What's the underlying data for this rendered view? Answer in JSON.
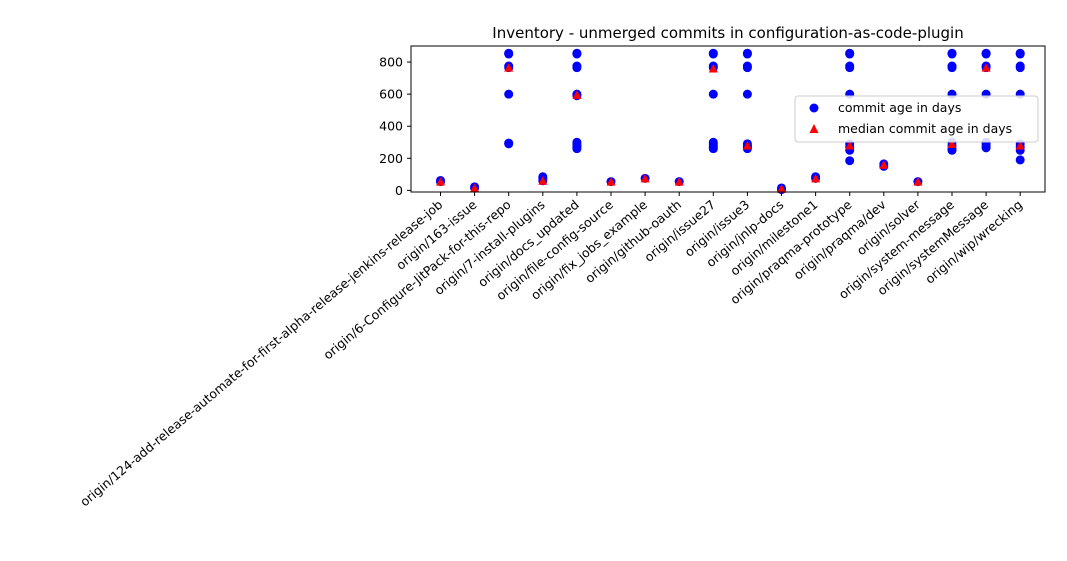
{
  "chart_data": {
    "type": "scatter",
    "title": "Inventory - unmerged commits in configuration-as-code-plugin",
    "xlabel": "",
    "ylabel": "",
    "ylim": [
      -10,
      900
    ],
    "yticks": [
      0,
      200,
      400,
      600,
      800
    ],
    "categories": [
      "origin/124-add-release-automate-for-first-alpha-release-jenkins-release-job",
      "origin/163-issue",
      "origin/6-Configure-JitPack-for-this-repo",
      "origin/7-install-plugins",
      "origin/docs_updated",
      "origin/file-config-source",
      "origin/fix_jobs_example",
      "origin/github-oauth",
      "origin/issue27",
      "origin/issue3",
      "origin/jnlp-docs",
      "origin/milestone1",
      "origin/praqma-prototype",
      "origin/praqma/dev",
      "origin/solver",
      "origin/system-message",
      "origin/systemMessage",
      "origin/wip/wrecking"
    ],
    "series": [
      {
        "name": "commit age in days",
        "marker": "circle",
        "color": "#0000ff",
        "values": [
          [
            55,
            62
          ],
          [
            15,
            22
          ],
          [
            290,
            295,
            600,
            765,
            775,
            850,
            855
          ],
          [
            60,
            75,
            85
          ],
          [
            260,
            270,
            280,
            290,
            300,
            590,
            600,
            765,
            775,
            850,
            855
          ],
          [
            55
          ],
          [
            75
          ],
          [
            55
          ],
          [
            260,
            270,
            280,
            290,
            300,
            600,
            765,
            775,
            850,
            855
          ],
          [
            260,
            270,
            280,
            290,
            600,
            765,
            775,
            850,
            855
          ],
          [
            5,
            15
          ],
          [
            75,
            85
          ],
          [
            185,
            250,
            270,
            290,
            600,
            765,
            775,
            850,
            855
          ],
          [
            150,
            165
          ],
          [
            55
          ],
          [
            250,
            260,
            280,
            300,
            600,
            765,
            775,
            850,
            855
          ],
          [
            265,
            275,
            290,
            300,
            600,
            765,
            775,
            850,
            855
          ],
          [
            190,
            250,
            270,
            290,
            600,
            765,
            775,
            850,
            855
          ]
        ]
      },
      {
        "name": "median commit age in days",
        "marker": "triangle",
        "color": "#ff0000",
        "values": [
          55,
          15,
          765,
          60,
          595,
          55,
          75,
          55,
          760,
          280,
          10,
          75,
          280,
          160,
          55,
          290,
          765,
          280
        ]
      }
    ],
    "legend_position": "center-right"
  }
}
